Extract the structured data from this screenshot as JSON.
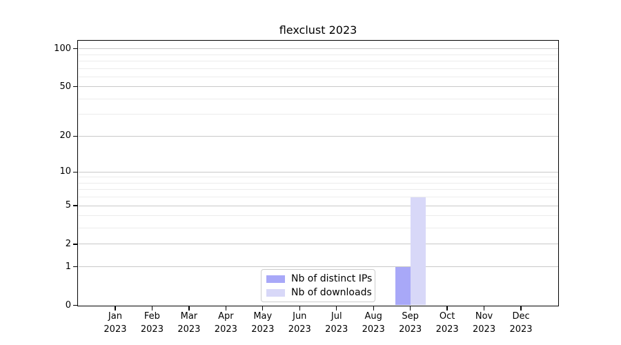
{
  "chart_data": {
    "type": "bar",
    "title": "flexclust 2023",
    "year": "2023",
    "categories": [
      "Jan",
      "Feb",
      "Mar",
      "Apr",
      "May",
      "Jun",
      "Jul",
      "Aug",
      "Sep",
      "Oct",
      "Nov",
      "Dec"
    ],
    "series": [
      {
        "name": "Nb of distinct IPs",
        "color": "#a8a8f8",
        "values": [
          0,
          0,
          0,
          0,
          0,
          0,
          0,
          0,
          1,
          0,
          0,
          0
        ]
      },
      {
        "name": "Nb of downloads",
        "color": "#d8d8f8",
        "values": [
          0,
          0,
          0,
          0,
          0,
          0,
          0,
          0,
          6,
          0,
          0,
          0
        ]
      }
    ],
    "xlabel": "",
    "ylabel": "",
    "yscale": "log1p",
    "ylim": [
      0,
      115
    ],
    "yticks": [
      0,
      1,
      2,
      5,
      10,
      20,
      50,
      100
    ],
    "yticks_minor": [
      3,
      4,
      6,
      7,
      8,
      9,
      30,
      40,
      60,
      70,
      80,
      90
    ],
    "grid": "horizontal",
    "legend_position": "lower-center",
    "colors": {
      "background": "#ffffff",
      "spine": "#000000",
      "text": "#000000",
      "major_grid": "#c8c8c8",
      "minor_grid": "#ececec"
    }
  }
}
